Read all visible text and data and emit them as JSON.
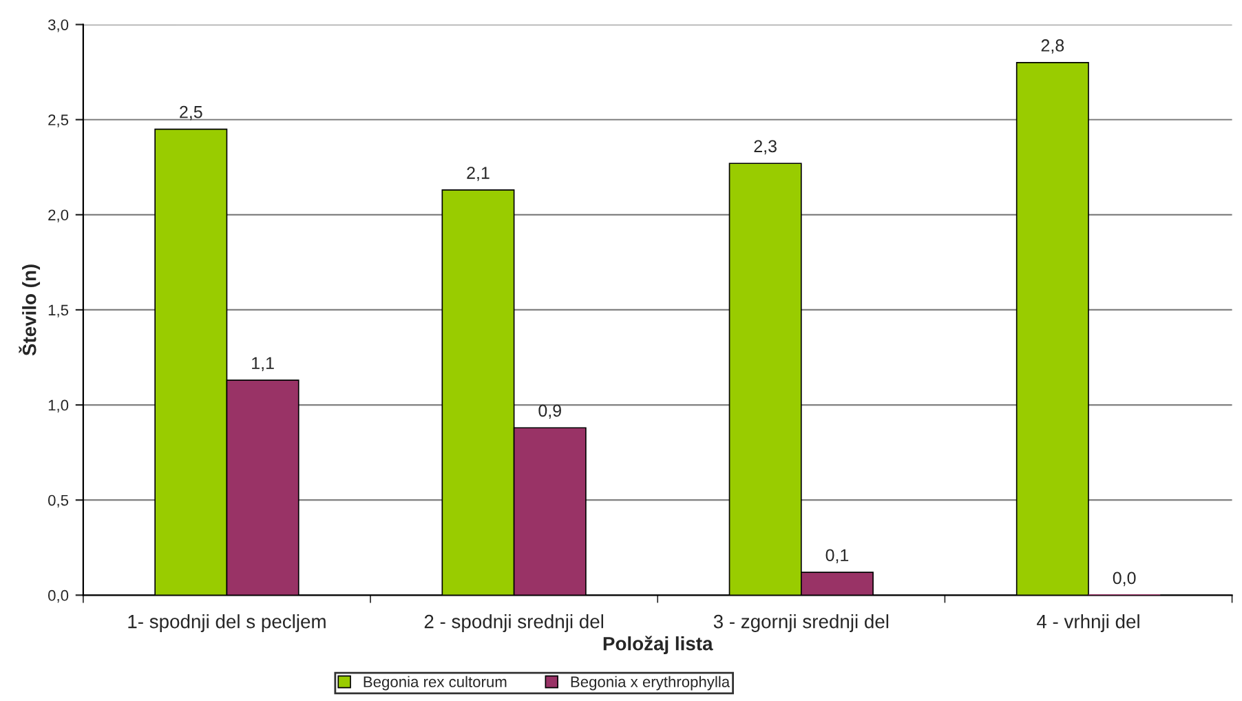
{
  "chart_data": {
    "type": "bar",
    "xlabel": "Položaj lista",
    "ylabel": "Število (n)",
    "categories": [
      "1- spodnji del s pecljem",
      "2 - spodnji srednji del",
      "3 - zgornji srednji del",
      "4 - vrhnji del"
    ],
    "series": [
      {
        "name": "Begonia rex cultorum",
        "color": "#99cc00",
        "values": [
          2.45,
          2.13,
          2.27,
          2.8
        ],
        "value_labels": [
          "2,5",
          "2,1",
          "2,3",
          "2,8"
        ]
      },
      {
        "name": "Begonia x erythrophylla",
        "color": "#993366",
        "values": [
          1.13,
          0.88,
          0.12,
          0.0
        ],
        "value_labels": [
          "1,1",
          "0,9",
          "0,1",
          "0,0"
        ]
      }
    ],
    "ylim": [
      0,
      3
    ],
    "yticks": [
      {
        "value": 0,
        "label": "0,0"
      },
      {
        "value": 0.5,
        "label": "0,5"
      },
      {
        "value": 1,
        "label": "1,0"
      },
      {
        "value": 1.5,
        "label": "1,5"
      },
      {
        "value": 2,
        "label": "2,0"
      },
      {
        "value": 2.5,
        "label": "2,5"
      },
      {
        "value": 3,
        "label": "3,0"
      }
    ],
    "grid": "y",
    "legend": "bottom"
  }
}
